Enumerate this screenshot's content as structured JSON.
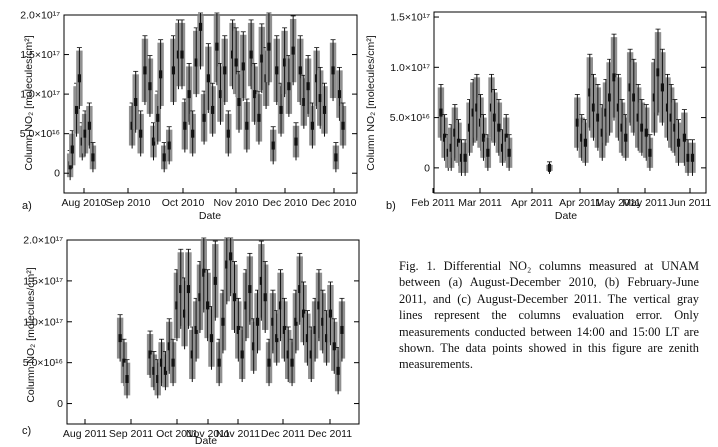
{
  "caption": "Fig. 1. Differential NO₂ columns measured at UNAM between (a) August-December 2010, (b) February-June 2011, and (c) August-December 2011. The vertical gray lines represent the columns evaluation error. Only measurements conducted between 14:00 and 15:00 LT are shown. The data points showed in this figure are zenith measurements.",
  "colors": {
    "error_bar": "#909090",
    "data": "#111111",
    "frame": "#000000"
  },
  "chart_data": [
    {
      "type": "scatter",
      "panel_label": "a)",
      "xlabel": "Date",
      "ylabel": "Column NO₂ [molecules/cm²]",
      "ylim": [
        -2.5e+16,
        2e+17
      ],
      "yticks": [
        0,
        5e+16,
        1e+17,
        1.5e+17,
        2e+17
      ],
      "ytick_labels": [
        "0",
        "5.0×10¹⁶",
        "1.0×10¹⁷",
        "1.5×10¹⁷",
        "2.0×10¹⁷"
      ],
      "xticks": [
        "Aug 2010",
        "Sep 2010",
        "Oct 2010",
        "Nov 2010",
        "Dec 2010",
        "Dec 2010"
      ],
      "series": [
        {
          "x": [
            0.3,
            0.6,
            1.2,
            1.6,
            2.0,
            2.4,
            3.0,
            3.5,
            9.0,
            9.5,
            10.2,
            10.8,
            11.5,
            12.0,
            12.6,
            13.0,
            13.5,
            14.2,
            14.8,
            15.5,
            16.0,
            16.4,
            17.0,
            17.5,
            18.0,
            18.6,
            19.1,
            19.7,
            20.3,
            20.9,
            21.4,
            22.0,
            22.5,
            23.1,
            23.6,
            24.0,
            24.6,
            25.1,
            25.7,
            26.2,
            26.8,
            27.2,
            27.8,
            28.2,
            28.8,
            29.3,
            29.9,
            30.4,
            31.0,
            31.6,
            32.0,
            32.6,
            33.1,
            33.7,
            34.3,
            34.9,
            35.4,
            36.0,
            37.2,
            37.6,
            38.1,
            38.6
          ],
          "y": [
            1e+16,
            3e+16,
            8e+16,
            1.2e+17,
            4e+16,
            5e+16,
            6e+16,
            2e+16,
            6e+16,
            9e+16,
            5e+16,
            1.3e+17,
            1.1e+17,
            4e+16,
            7e+16,
            1.25e+17,
            2e+16,
            3.5e+16,
            1.3e+17,
            1.5e+17,
            1.5e+17,
            6e+16,
            1e+17,
            5e+16,
            1.4e+17,
            1.85e+17,
            7e+16,
            1.2e+17,
            8e+16,
            1.6e+17,
            1e+17,
            1.3e+17,
            5e+16,
            1.5e+17,
            1.4e+17,
            9e+16,
            1.35e+17,
            6e+16,
            1.5e+17,
            1e+17,
            7e+16,
            1.45e+17,
            1.2e+17,
            1.6e+17,
            3.5e+16,
            1.3e+17,
            8e+16,
            1.4e+17,
            1.1e+17,
            1.55e+17,
            4e+16,
            1.3e+17,
            9e+16,
            1.1e+17,
            6e+16,
            1.2e+17,
            9.5e+16,
            8e+16,
            1.3e+17,
            2e+16,
            1e+17,
            6e+16
          ],
          "err": [
            1.5e+16,
            2e+16,
            3e+16,
            3.5e+16,
            2e+16,
            2.5e+16,
            2.5e+16,
            1.5e+16,
            2.5e+16,
            3.5e+16,
            2.5e+16,
            4e+16,
            3.5e+16,
            2e+16,
            3e+16,
            4e+16,
            1.5e+16,
            2e+16,
            4e+16,
            4e+16,
            4e+16,
            3e+16,
            3.5e+16,
            2.5e+16,
            4e+16,
            5e+16,
            3e+16,
            4e+16,
            3e+16,
            4.5e+16,
            3.5e+16,
            4e+16,
            2.5e+16,
            4e+16,
            4e+16,
            3.5e+16,
            4e+16,
            3e+16,
            4e+16,
            3.5e+16,
            3e+16,
            4e+16,
            3.5e+16,
            4.5e+16,
            2e+16,
            4e+16,
            3e+16,
            4e+16,
            3.5e+16,
            4e+16,
            2e+16,
            4e+16,
            3e+16,
            3.5e+16,
            2.5e+16,
            3.5e+16,
            3.5e+16,
            3e+16,
            3.5e+16,
            1.5e+16,
            3e+16,
            2.5e+16
          ]
        }
      ]
    },
    {
      "type": "scatter",
      "panel_label": "b)",
      "xlabel": "Date",
      "ylabel": "Column NO₂ [molecules/cm²]",
      "ylim": [
        -2.5e+16,
        1.55e+17
      ],
      "yticks": [
        0,
        5e+16,
        1e+17,
        1.5e+17
      ],
      "ytick_labels": [
        "0",
        "5.0×10¹⁶",
        "1.0×10¹⁷",
        "1.5×10¹⁷"
      ],
      "xticks": [
        "Feb 2011",
        "Mar 2011",
        "Apr 2011",
        "Apr 2011",
        "May 2011",
        "May 2011",
        "Jun 2011"
      ],
      "series": [
        {
          "x": [
            0.4,
            0.9,
            1.4,
            1.8,
            2.3,
            2.8,
            3.2,
            3.7,
            4.3,
            4.8,
            5.3,
            5.8,
            6.2,
            6.8,
            7.3,
            7.7,
            8.3,
            8.8,
            9.3,
            9.7,
            15.2,
            19.0,
            19.6,
            20.1,
            20.7,
            21.2,
            21.8,
            22.4,
            22.9,
            23.4,
            24.0,
            24.6,
            25.1,
            25.6,
            26.2,
            26.7,
            27.3,
            27.8,
            28.4,
            28.9,
            29.5,
            30.0,
            30.6,
            31.3,
            31.8,
            32.3,
            32.8,
            33.6,
            34.1,
            34.7
          ],
          "y": [
            5.5e+16,
            3e+16,
            1.5e+16,
            2e+16,
            3.5e+16,
            2.5e+16,
            1e+16,
            1e+16,
            4e+16,
            5.5e+16,
            6e+16,
            4.5e+16,
            3e+16,
            1.5e+16,
            6e+16,
            5e+16,
            4e+16,
            2e+16,
            3e+16,
            1.5e+16,
            0,
            4.5e+16,
            3e+16,
            2.5e+16,
            7.5e+16,
            6e+16,
            5e+16,
            3.5e+16,
            5.5e+16,
            7e+16,
            9e+16,
            6e+16,
            4e+16,
            3e+16,
            8e+16,
            7e+16,
            5e+16,
            4e+16,
            3.5e+16,
            1.5e+16,
            7e+16,
            9.5e+16,
            8e+16,
            6e+16,
            5e+16,
            4e+16,
            2.5e+16,
            3e+16,
            1e+16,
            1e+16
          ],
          "err": [
            2.5e+16,
            2e+16,
            1.5e+16,
            2e+16,
            2.5e+16,
            2e+16,
            1.5e+16,
            1.5e+16,
            2.5e+16,
            3e+16,
            3e+16,
            2.5e+16,
            2e+16,
            1.5e+16,
            3e+16,
            2.5e+16,
            2.5e+16,
            1.5e+16,
            2e+16,
            1.5e+16,
            3000000000000000.0,
            2.5e+16,
            2e+16,
            2e+16,
            3.5e+16,
            3e+16,
            3e+16,
            2.5e+16,
            3e+16,
            3.5e+16,
            4e+16,
            3e+16,
            2.5e+16,
            2e+16,
            3.5e+16,
            3.5e+16,
            3e+16,
            2.5e+16,
            2.5e+16,
            1.5e+16,
            3.5e+16,
            4e+16,
            3.5e+16,
            3e+16,
            3e+16,
            2.5e+16,
            2e+16,
            2.5e+16,
            1.5e+16,
            1.5e+16
          ]
        }
      ]
    },
    {
      "type": "scatter",
      "panel_label": "c)",
      "xlabel": "Date",
      "ylabel": "Column NO₂ [molecules/cm²]",
      "ylim": [
        -2.5e+16,
        2e+17
      ],
      "yticks": [
        0,
        5e+16,
        1e+17,
        1.5e+17,
        2e+17
      ],
      "ytick_labels": [
        "0",
        "5.0×10¹⁶",
        "1.0×10¹⁷",
        "1.5×10¹⁷",
        "2.0×10¹⁷"
      ],
      "xticks": [
        "Aug 2011",
        "Sep 2011",
        "Oct 2011",
        "Nov 2011",
        "Nov 2011",
        "Dec 2011",
        "Dec 2011"
      ],
      "series": [
        {
          "x": [
            6.4,
            6.9,
            7.3,
            10.3,
            10.8,
            11.3,
            11.8,
            12.3,
            12.8,
            13.3,
            13.8,
            14.3,
            14.8,
            15.3,
            15.8,
            16.3,
            16.8,
            17.3,
            17.8,
            18.3,
            18.8,
            19.3,
            19.8,
            20.3,
            20.8,
            21.3,
            21.8,
            22.3,
            22.8,
            23.3,
            23.8,
            24.3,
            24.8,
            25.3,
            25.8,
            26.3,
            26.8,
            27.3,
            27.8,
            28.3,
            28.8,
            29.3,
            29.8,
            30.3,
            30.8,
            31.3,
            31.8,
            32.3,
            32.8,
            33.3,
            33.8,
            34.3,
            34.8,
            35.3
          ],
          "y": [
            8e+16,
            5e+16,
            3e+16,
            6e+16,
            4e+16,
            3e+16,
            5e+16,
            4e+16,
            7e+16,
            5e+16,
            1.2e+17,
            1.4e+17,
            1.1e+17,
            1.4e+17,
            6e+16,
            9e+16,
            1.3e+17,
            1.6e+17,
            1.2e+17,
            8e+16,
            1.5e+17,
            5e+16,
            1e+17,
            1.7e+17,
            1.8e+17,
            1.3e+17,
            9e+16,
            6e+16,
            1.2e+17,
            1.4e+17,
            7e+16,
            1e+17,
            1.5e+17,
            1.3e+17,
            5e+16,
            1e+17,
            8e+16,
            1.2e+17,
            9e+16,
            6e+16,
            5e+16,
            1e+17,
            1.4e+17,
            1.1e+17,
            8e+16,
            6e+16,
            9e+16,
            1.2e+17,
            1e+17,
            8e+16,
            1.1e+17,
            7e+16,
            4e+16,
            9e+16
          ],
          "err": [
            2.5e+16,
            2.5e+16,
            2e+16,
            2.5e+16,
            2e+16,
            2e+16,
            2.5e+16,
            2e+16,
            3e+16,
            2.5e+16,
            4e+16,
            4.5e+16,
            4e+16,
            4.5e+16,
            3e+16,
            3.5e+16,
            4e+16,
            4.5e+16,
            4e+16,
            3.5e+16,
            4.5e+16,
            2.5e+16,
            3.5e+16,
            4.5e+16,
            4.5e+16,
            4e+16,
            3.5e+16,
            3e+16,
            4e+16,
            4e+16,
            3e+16,
            3.5e+16,
            4.5e+16,
            4e+16,
            2.5e+16,
            3.5e+16,
            3e+16,
            4e+16,
            3.5e+16,
            3e+16,
            2.5e+16,
            3.5e+16,
            4e+16,
            3.5e+16,
            3e+16,
            3e+16,
            3.5e+16,
            4e+16,
            3.5e+16,
            3e+16,
            3.5e+16,
            3e+16,
            2.5e+16,
            3.5e+16
          ]
        }
      ]
    }
  ]
}
